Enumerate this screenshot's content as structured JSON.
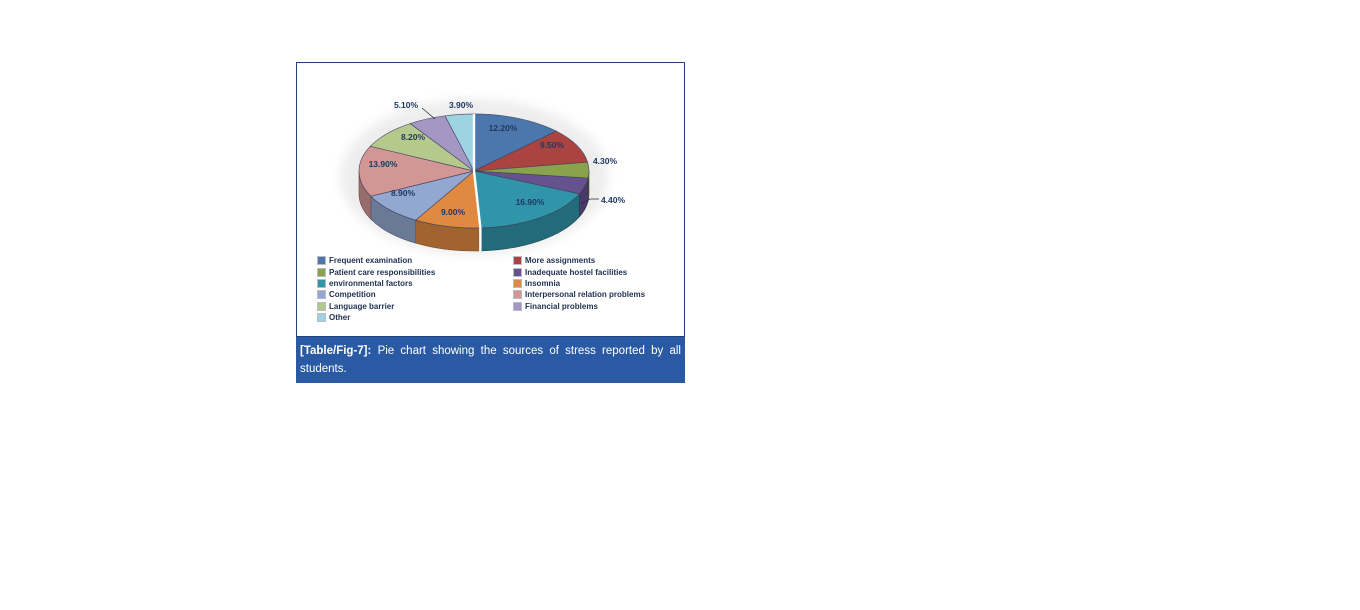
{
  "figure": {
    "caption": {
      "tag": "[Table/Fig-7]:",
      "text": " Pie chart showing the sources of stress reported by all students.",
      "bar_color": "#2b5aa5",
      "text_color": "#ffffff"
    },
    "border_color": "#23427a"
  },
  "chart_data": {
    "type": "pie",
    "style": "3d",
    "title": "",
    "legend_position": "bottom",
    "legend_columns": 2,
    "label_text_color": "#1f3864",
    "slices": [
      {
        "label": "Frequent examination",
        "value": 12.2,
        "display": "12.20%",
        "color": "#4b77ad",
        "label_placement": "inside"
      },
      {
        "label": "More assignments",
        "value": 9.5,
        "display": "9.50%",
        "color": "#ab4440",
        "label_placement": "inside"
      },
      {
        "label": "Patient care responsibilities",
        "value": 4.3,
        "display": "4.30%",
        "color": "#8ba24c",
        "label_placement": "outside"
      },
      {
        "label": "Inadequate hostel facilities",
        "value": 4.4,
        "display": "4.40%",
        "color": "#65528f",
        "label_placement": "outside"
      },
      {
        "label": "environmental factors",
        "value": 16.9,
        "display": "16.90%",
        "color": "#3095a9",
        "label_placement": "inside"
      },
      {
        "label": "Insomnia",
        "value": 9.0,
        "display": "9.00%",
        "color": "#e08a41",
        "label_placement": "inside"
      },
      {
        "label": "Competition",
        "value": 8.9,
        "display": "8.90%",
        "color": "#92a8d0",
        "label_placement": "inside"
      },
      {
        "label": "Interpersonal relation problems",
        "value": 13.9,
        "display": "13.90%",
        "color": "#d29795",
        "label_placement": "inside"
      },
      {
        "label": "Language barrier",
        "value": 8.2,
        "display": "8.20%",
        "color": "#b6c98c",
        "label_placement": "inside"
      },
      {
        "label": "Financial problems",
        "value": 5.1,
        "display": "5.10%",
        "color": "#a597c4",
        "label_placement": "outside"
      },
      {
        "label": "Other",
        "value": 3.9,
        "display": "3.90%",
        "color": "#9fd3e2",
        "label_placement": "outside"
      }
    ]
  }
}
